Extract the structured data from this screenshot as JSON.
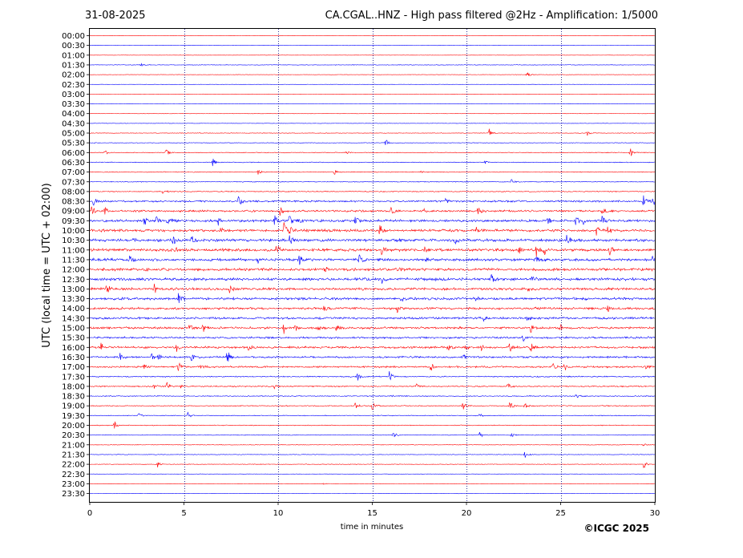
{
  "header": {
    "date": "31-08-2025",
    "station_title": "CA.CGAL..HNZ - High pass filtered @2Hz - Amplification: 1/5000"
  },
  "footer": {
    "copyright": "©ICGC 2025"
  },
  "colors": {
    "red_trace": "#ff0000",
    "blue_trace": "#0000ff",
    "grid": "#000080"
  },
  "chart_data": {
    "type": "line",
    "title": "CA.CGAL..HNZ - High pass filtered @2Hz - Amplification: 1/5000",
    "xlabel": "time in minutes",
    "ylabel": "UTC (local time = UTC + 02:00)",
    "xlim": [
      0,
      30
    ],
    "x_ticks": [
      "0",
      "5",
      "10",
      "15",
      "20",
      "25",
      "30"
    ],
    "grid": "vertical dotted lines at 5-minute ticks",
    "row_labels": [
      "00:00",
      "00:30",
      "01:00",
      "01:30",
      "02:00",
      "02:30",
      "03:00",
      "03:30",
      "04:00",
      "04:30",
      "05:00",
      "05:30",
      "06:00",
      "06:30",
      "07:00",
      "07:30",
      "08:00",
      "08:30",
      "09:00",
      "09:30",
      "10:00",
      "10:30",
      "11:00",
      "11:30",
      "12:00",
      "12:30",
      "13:00",
      "13:30",
      "14:00",
      "14:30",
      "15:00",
      "15:30",
      "16:00",
      "16:30",
      "17:00",
      "17:30",
      "18:00",
      "18:30",
      "19:00",
      "19:30",
      "20:00",
      "20:30",
      "21:00",
      "21:30",
      "22:00",
      "22:30",
      "23:00",
      "23:30"
    ],
    "row_colors": "alternating red (even rows) and blue (odd rows)",
    "noise_level": [
      0.15,
      0.15,
      0.15,
      0.3,
      0.2,
      0.15,
      0.15,
      0.15,
      0.15,
      0.2,
      0.3,
      0.3,
      0.4,
      0.4,
      0.4,
      0.4,
      0.5,
      0.9,
      1.0,
      1.2,
      1.3,
      1.4,
      1.4,
      1.4,
      1.4,
      1.4,
      1.3,
      1.3,
      1.2,
      1.1,
      1.1,
      1.0,
      1.1,
      1.0,
      0.9,
      0.6,
      0.6,
      0.5,
      0.5,
      0.4,
      0.4,
      0.3,
      0.3,
      0.3,
      0.3,
      0.2,
      0.2,
      0.2
    ],
    "events": [
      {
        "row": 3,
        "t": 2.7,
        "amp": 2
      },
      {
        "row": 4,
        "t": 23.2,
        "amp": 4
      },
      {
        "row": 10,
        "t": 21.2,
        "amp": 6
      },
      {
        "row": 10,
        "t": 26.4,
        "amp": 4
      },
      {
        "row": 11,
        "t": 15.7,
        "amp": 5
      },
      {
        "row": 12,
        "t": 0.8,
        "amp": 3
      },
      {
        "row": 12,
        "t": 4.0,
        "amp": 7
      },
      {
        "row": 12,
        "t": 13.6,
        "amp": 2
      },
      {
        "row": 12,
        "t": 28.7,
        "amp": 6
      },
      {
        "row": 13,
        "t": 6.5,
        "amp": 7
      },
      {
        "row": 13,
        "t": 21.0,
        "amp": 2
      },
      {
        "row": 14,
        "t": 8.9,
        "amp": 5
      },
      {
        "row": 14,
        "t": 13.0,
        "amp": 3
      },
      {
        "row": 14,
        "t": 17.6,
        "amp": 2
      },
      {
        "row": 15,
        "t": 22.4,
        "amp": 6
      },
      {
        "row": 16,
        "t": 3.9,
        "amp": 5
      },
      {
        "row": 17,
        "t": 0.2,
        "amp": 7
      },
      {
        "row": 17,
        "t": 7.9,
        "amp": 7
      },
      {
        "row": 17,
        "t": 18.9,
        "amp": 6
      },
      {
        "row": 17,
        "t": 29.4,
        "amp": 9
      },
      {
        "row": 17,
        "t": 29.9,
        "amp": 6
      },
      {
        "row": 18,
        "t": 0.1,
        "amp": 6
      },
      {
        "row": 18,
        "t": 0.8,
        "amp": 5
      },
      {
        "row": 18,
        "t": 10.1,
        "amp": 6
      },
      {
        "row": 18,
        "t": 16.0,
        "amp": 5
      },
      {
        "row": 18,
        "t": 17.7,
        "amp": 4
      },
      {
        "row": 18,
        "t": 20.6,
        "amp": 5
      },
      {
        "row": 18,
        "t": 27.2,
        "amp": 5
      },
      {
        "row": 19,
        "t": 2.9,
        "amp": 6
      },
      {
        "row": 19,
        "t": 3.5,
        "amp": 6
      },
      {
        "row": 19,
        "t": 4.1,
        "amp": 6
      },
      {
        "row": 19,
        "t": 4.4,
        "amp": 5
      },
      {
        "row": 19,
        "t": 6.8,
        "amp": 8
      },
      {
        "row": 19,
        "t": 9.8,
        "amp": 7
      },
      {
        "row": 19,
        "t": 10.6,
        "amp": 7
      },
      {
        "row": 19,
        "t": 11.1,
        "amp": 5
      },
      {
        "row": 19,
        "t": 14.1,
        "amp": 6
      },
      {
        "row": 19,
        "t": 24.3,
        "amp": 5
      },
      {
        "row": 19,
        "t": 25.8,
        "amp": 6
      },
      {
        "row": 19,
        "t": 26.2,
        "amp": 5
      },
      {
        "row": 19,
        "t": 27.2,
        "amp": 6
      },
      {
        "row": 20,
        "t": 6.9,
        "amp": 8
      },
      {
        "row": 20,
        "t": 10.3,
        "amp": 10
      },
      {
        "row": 20,
        "t": 10.6,
        "amp": 7
      },
      {
        "row": 20,
        "t": 15.4,
        "amp": 7
      },
      {
        "row": 20,
        "t": 20.5,
        "amp": 6
      },
      {
        "row": 20,
        "t": 26.9,
        "amp": 7
      },
      {
        "row": 20,
        "t": 27.5,
        "amp": 5
      },
      {
        "row": 21,
        "t": 2.3,
        "amp": 4
      },
      {
        "row": 21,
        "t": 4.4,
        "amp": 6
      },
      {
        "row": 21,
        "t": 5.4,
        "amp": 5
      },
      {
        "row": 21,
        "t": 10.6,
        "amp": 7
      },
      {
        "row": 21,
        "t": 19.4,
        "amp": 5
      },
      {
        "row": 21,
        "t": 25.3,
        "amp": 8
      },
      {
        "row": 22,
        "t": 4.5,
        "amp": 5
      },
      {
        "row": 22,
        "t": 9.9,
        "amp": 10
      },
      {
        "row": 22,
        "t": 15.5,
        "amp": 6
      },
      {
        "row": 22,
        "t": 17.8,
        "amp": 5
      },
      {
        "row": 22,
        "t": 22.8,
        "amp": 6
      },
      {
        "row": 22,
        "t": 23.7,
        "amp": 9
      },
      {
        "row": 22,
        "t": 24.1,
        "amp": 7
      },
      {
        "row": 22,
        "t": 27.6,
        "amp": 7
      },
      {
        "row": 23,
        "t": 2.1,
        "amp": 6
      },
      {
        "row": 23,
        "t": 8.9,
        "amp": 6
      },
      {
        "row": 23,
        "t": 11.1,
        "amp": 8
      },
      {
        "row": 23,
        "t": 14.3,
        "amp": 6
      },
      {
        "row": 23,
        "t": 17.9,
        "amp": 5
      },
      {
        "row": 23,
        "t": 23.7,
        "amp": 6
      },
      {
        "row": 23,
        "t": 29.9,
        "amp": 8
      },
      {
        "row": 24,
        "t": 3.0,
        "amp": 4
      },
      {
        "row": 24,
        "t": 12.5,
        "amp": 4
      },
      {
        "row": 24,
        "t": 16.3,
        "amp": 3
      },
      {
        "row": 25,
        "t": 15.5,
        "amp": 5
      },
      {
        "row": 25,
        "t": 21.3,
        "amp": 7
      },
      {
        "row": 25,
        "t": 23.5,
        "amp": 5
      },
      {
        "row": 26,
        "t": 0.9,
        "amp": 6
      },
      {
        "row": 26,
        "t": 3.4,
        "amp": 7
      },
      {
        "row": 26,
        "t": 7.4,
        "amp": 6
      },
      {
        "row": 26,
        "t": 23.3,
        "amp": 5
      },
      {
        "row": 27,
        "t": 4.7,
        "amp": 7
      },
      {
        "row": 27,
        "t": 16.5,
        "amp": 4
      },
      {
        "row": 27,
        "t": 20.5,
        "amp": 4
      },
      {
        "row": 28,
        "t": 12.4,
        "amp": 6
      },
      {
        "row": 28,
        "t": 16.3,
        "amp": 6
      },
      {
        "row": 28,
        "t": 27.5,
        "amp": 5
      },
      {
        "row": 29,
        "t": 20.9,
        "amp": 5
      },
      {
        "row": 29,
        "t": 23.2,
        "amp": 4
      },
      {
        "row": 30,
        "t": 5.3,
        "amp": 5
      },
      {
        "row": 30,
        "t": 6.0,
        "amp": 6
      },
      {
        "row": 30,
        "t": 10.3,
        "amp": 8
      },
      {
        "row": 30,
        "t": 10.9,
        "amp": 5
      },
      {
        "row": 30,
        "t": 12.1,
        "amp": 4
      },
      {
        "row": 30,
        "t": 13.1,
        "amp": 5
      },
      {
        "row": 30,
        "t": 23.4,
        "amp": 6
      },
      {
        "row": 30,
        "t": 25.0,
        "amp": 6
      },
      {
        "row": 31,
        "t": 23.0,
        "amp": 5
      },
      {
        "row": 32,
        "t": 0.6,
        "amp": 6
      },
      {
        "row": 32,
        "t": 4.6,
        "amp": 5
      },
      {
        "row": 32,
        "t": 8.4,
        "amp": 6
      },
      {
        "row": 32,
        "t": 19.0,
        "amp": 5
      },
      {
        "row": 32,
        "t": 19.9,
        "amp": 6
      },
      {
        "row": 32,
        "t": 20.8,
        "amp": 5
      },
      {
        "row": 32,
        "t": 22.3,
        "amp": 6
      },
      {
        "row": 32,
        "t": 23.4,
        "amp": 6
      },
      {
        "row": 33,
        "t": 1.6,
        "amp": 5
      },
      {
        "row": 33,
        "t": 3.3,
        "amp": 5
      },
      {
        "row": 33,
        "t": 3.6,
        "amp": 4
      },
      {
        "row": 33,
        "t": 5.4,
        "amp": 5
      },
      {
        "row": 33,
        "t": 7.3,
        "amp": 9
      },
      {
        "row": 33,
        "t": 19.8,
        "amp": 4
      },
      {
        "row": 34,
        "t": 2.9,
        "amp": 5
      },
      {
        "row": 34,
        "t": 4.7,
        "amp": 6
      },
      {
        "row": 34,
        "t": 5.9,
        "amp": 5
      },
      {
        "row": 34,
        "t": 18.1,
        "amp": 6
      },
      {
        "row": 34,
        "t": 24.6,
        "amp": 5
      },
      {
        "row": 34,
        "t": 25.2,
        "amp": 5
      },
      {
        "row": 34,
        "t": 29.5,
        "amp": 5
      },
      {
        "row": 35,
        "t": 14.2,
        "amp": 7
      },
      {
        "row": 35,
        "t": 15.9,
        "amp": 7
      },
      {
        "row": 36,
        "t": 3.4,
        "amp": 5
      },
      {
        "row": 36,
        "t": 4.1,
        "amp": 5
      },
      {
        "row": 36,
        "t": 4.7,
        "amp": 5
      },
      {
        "row": 36,
        "t": 9.8,
        "amp": 3
      },
      {
        "row": 36,
        "t": 17.3,
        "amp": 5
      },
      {
        "row": 36,
        "t": 22.2,
        "amp": 5
      },
      {
        "row": 37,
        "t": 16.0,
        "amp": 3
      },
      {
        "row": 37,
        "t": 25.8,
        "amp": 5
      },
      {
        "row": 38,
        "t": 14.1,
        "amp": 4
      },
      {
        "row": 38,
        "t": 15.0,
        "amp": 6
      },
      {
        "row": 38,
        "t": 19.8,
        "amp": 6
      },
      {
        "row": 38,
        "t": 22.3,
        "amp": 6
      },
      {
        "row": 38,
        "t": 23.1,
        "amp": 5
      },
      {
        "row": 39,
        "t": 2.6,
        "amp": 4
      },
      {
        "row": 39,
        "t": 5.2,
        "amp": 5
      },
      {
        "row": 39,
        "t": 20.7,
        "amp": 3
      },
      {
        "row": 40,
        "t": 1.3,
        "amp": 5
      },
      {
        "row": 41,
        "t": 16.1,
        "amp": 6
      },
      {
        "row": 41,
        "t": 20.7,
        "amp": 4
      },
      {
        "row": 41,
        "t": 22.4,
        "amp": 3
      },
      {
        "row": 42,
        "t": 29.4,
        "amp": 2
      },
      {
        "row": 43,
        "t": 23.1,
        "amp": 5
      },
      {
        "row": 44,
        "t": 3.6,
        "amp": 4
      },
      {
        "row": 44,
        "t": 29.4,
        "amp": 6
      },
      {
        "row": 46,
        "t": 12.4,
        "amp": 1
      }
    ]
  }
}
